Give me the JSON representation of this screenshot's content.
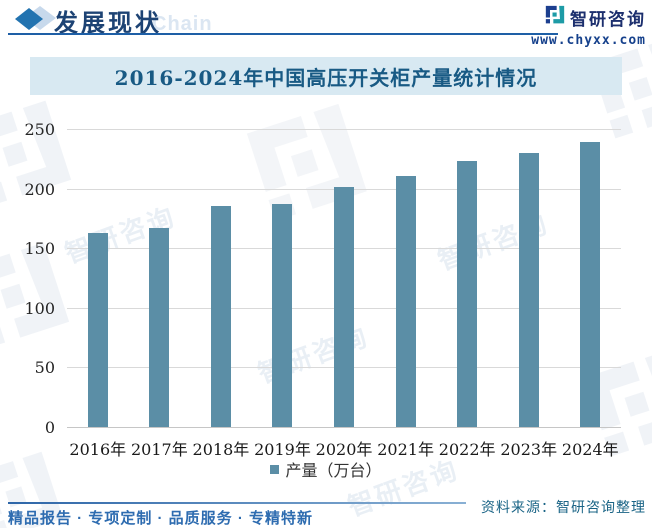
{
  "header": {
    "title": "发展现状",
    "brand_name": "智研咨询",
    "brand_site": "www.chyxx.com"
  },
  "watermark": {
    "chain": "Chain",
    "text": "智研咨询"
  },
  "chart_data": {
    "type": "bar",
    "title": "2016-2024年中国高压开关柜产量统计情况",
    "categories": [
      "2016年",
      "2017年",
      "2018年",
      "2019年",
      "2020年",
      "2021年",
      "2022年",
      "2023年",
      "2024年"
    ],
    "values": [
      163,
      167,
      185,
      187,
      201,
      211,
      223,
      230,
      239
    ],
    "series_name": "产量（万台）",
    "xlabel": "",
    "ylabel": "",
    "ylim": [
      0,
      250
    ],
    "yticks": [
      0,
      50,
      100,
      150,
      200,
      250
    ],
    "grid": true,
    "legend_position": "bottom",
    "bar_color": "#5b8ea6"
  },
  "footer": {
    "slogan": "精品报告 · 专项定制 · 品质服务 · 专精特新",
    "source": "资料来源：智研咨询整理"
  },
  "colors": {
    "accent_blue": "#1e5fa6",
    "title_band_bg": "#d8e9f2",
    "title_text": "#185a84",
    "bar": "#5b8ea6"
  }
}
